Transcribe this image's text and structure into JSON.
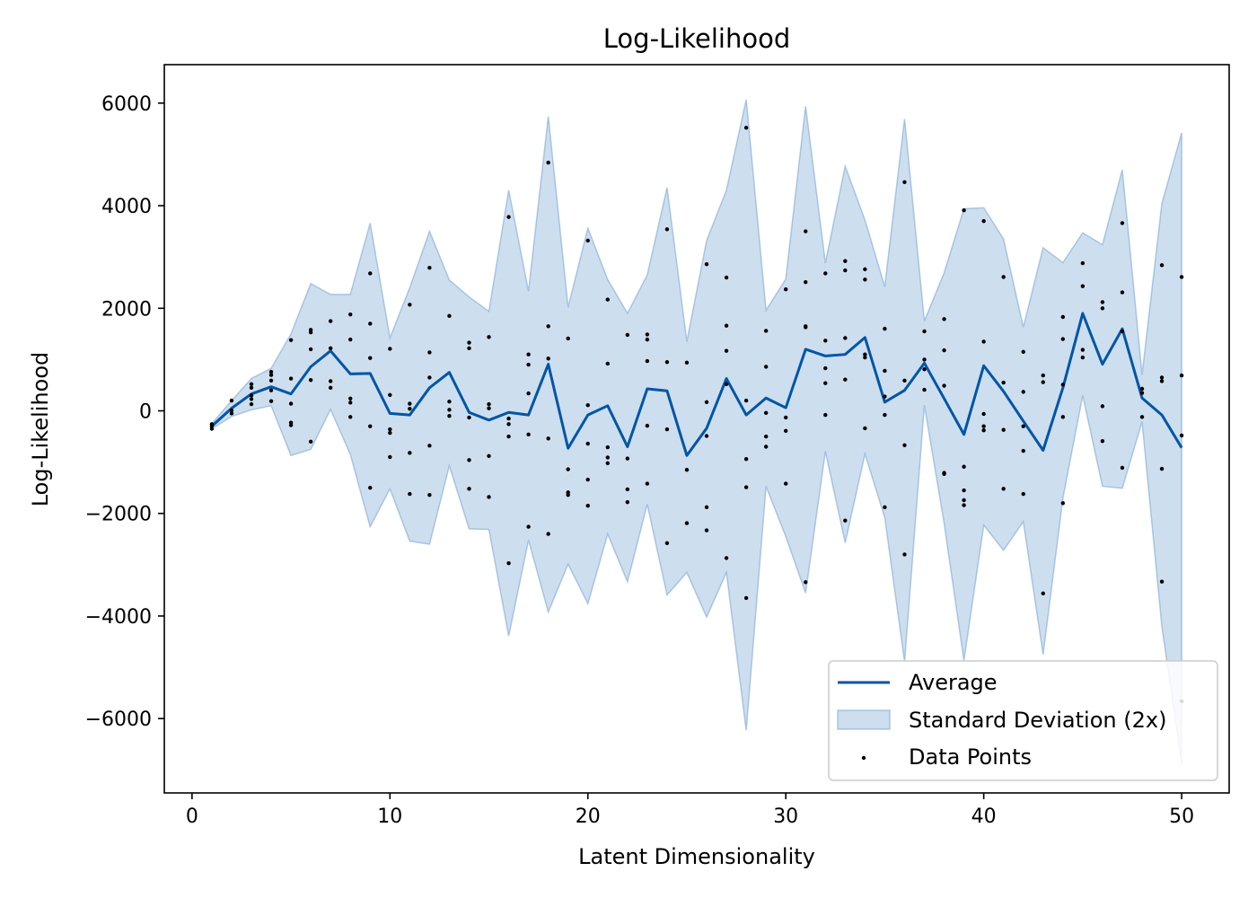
{
  "chart_data": {
    "type": "line",
    "title": "Log-Likelihood",
    "xlabel": "Latent Dimensionality",
    "ylabel": "Log-Likelihood",
    "xlim": [
      -1.4,
      52.4
    ],
    "ylim": [
      -7450,
      6750
    ],
    "xticks": [
      0,
      10,
      20,
      30,
      40,
      50
    ],
    "yticks": [
      -6000,
      -4000,
      -2000,
      0,
      2000,
      4000,
      6000
    ],
    "xtick_labels": [
      "0",
      "10",
      "20",
      "30",
      "40",
      "50"
    ],
    "ytick_labels": [
      "−6000",
      "−4000",
      "−2000",
      "0",
      "2000",
      "4000",
      "6000"
    ],
    "grid": false,
    "legend_position": "lower right",
    "legend": [
      "Average",
      "Standard Deviation (2x)",
      "Data Points"
    ],
    "colors": {
      "line": "#0055a5",
      "band": "#a8c6e4",
      "band_edge": "#7fa9d4",
      "points": "#000000"
    },
    "x": [
      1,
      2,
      3,
      4,
      5,
      6,
      7,
      8,
      9,
      10,
      11,
      12,
      13,
      14,
      15,
      16,
      17,
      18,
      19,
      20,
      21,
      22,
      23,
      24,
      25,
      26,
      27,
      28,
      29,
      30,
      31,
      32,
      33,
      34,
      35,
      36,
      37,
      38,
      39,
      40,
      41,
      42,
      43,
      44,
      45,
      46,
      47,
      48,
      49,
      50
    ],
    "average": [
      -300,
      50,
      330,
      470,
      330,
      860,
      1170,
      720,
      730,
      -50,
      -80,
      450,
      750,
      -30,
      -180,
      -30,
      -80,
      910,
      -730,
      -80,
      100,
      -700,
      430,
      390,
      -870,
      -340,
      630,
      -80,
      250,
      60,
      1200,
      1070,
      1100,
      1430,
      170,
      400,
      930,
      240,
      -460,
      880,
      380,
      -200,
      -770,
      450,
      1900,
      910,
      1600,
      250,
      -80,
      -720
    ],
    "band_upper": [
      -250,
      200,
      630,
      830,
      1500,
      2480,
      2270,
      2270,
      3660,
      1420,
      2400,
      3500,
      2550,
      2220,
      1940,
      4300,
      2330,
      5740,
      2020,
      3560,
      2560,
      1900,
      2650,
      4350,
      1350,
      3320,
      4300,
      6070,
      1960,
      2570,
      5940,
      2880,
      4770,
      3720,
      2420,
      5690,
      1750,
      2690,
      3940,
      3960,
      3350,
      1630,
      3180,
      2890,
      3470,
      3240,
      4700,
      700,
      4040,
      5420
    ],
    "band_lower": [
      -350,
      -110,
      20,
      100,
      -870,
      -750,
      30,
      -850,
      -2260,
      -1520,
      -2540,
      -2600,
      -1070,
      -2300,
      -2310,
      -4390,
      -2520,
      -3920,
      -2990,
      -3760,
      -2400,
      -3330,
      -1820,
      -3590,
      -3150,
      -4020,
      -3150,
      -6230,
      -1470,
      -2450,
      -3550,
      -790,
      -2570,
      -840,
      -2080,
      -4890,
      110,
      -2190,
      -4870,
      -2230,
      -2720,
      -2160,
      -4750,
      -1700,
      300,
      -1470,
      -1510,
      -210,
      -4200,
      -6890
    ],
    "points": [
      [
        1,
        -260
      ],
      [
        1,
        -300
      ],
      [
        1,
        -350
      ],
      [
        2,
        200
      ],
      [
        2,
        10
      ],
      [
        2,
        -50
      ],
      [
        3,
        520
      ],
      [
        3,
        450
      ],
      [
        3,
        300
      ],
      [
        3,
        230
      ],
      [
        3,
        130
      ],
      [
        4,
        760
      ],
      [
        4,
        700
      ],
      [
        4,
        590
      ],
      [
        4,
        400
      ],
      [
        4,
        190
      ],
      [
        5,
        1380
      ],
      [
        5,
        630
      ],
      [
        5,
        140
      ],
      [
        5,
        -230
      ],
      [
        5,
        -280
      ],
      [
        6,
        1580
      ],
      [
        6,
        1530
      ],
      [
        6,
        1200
      ],
      [
        6,
        600
      ],
      [
        6,
        -600
      ],
      [
        7,
        1750
      ],
      [
        7,
        1220
      ],
      [
        7,
        580
      ],
      [
        7,
        450
      ],
      [
        8,
        1880
      ],
      [
        8,
        1390
      ],
      [
        8,
        240
      ],
      [
        8,
        160
      ],
      [
        8,
        -120
      ],
      [
        9,
        2680
      ],
      [
        9,
        1700
      ],
      [
        9,
        1030
      ],
      [
        9,
        -300
      ],
      [
        9,
        -1500
      ],
      [
        10,
        1210
      ],
      [
        10,
        310
      ],
      [
        10,
        -360
      ],
      [
        10,
        -430
      ],
      [
        10,
        -900
      ],
      [
        11,
        2070
      ],
      [
        11,
        140
      ],
      [
        11,
        40
      ],
      [
        11,
        -820
      ],
      [
        11,
        -1620
      ],
      [
        12,
        2790
      ],
      [
        12,
        1140
      ],
      [
        12,
        650
      ],
      [
        12,
        -680
      ],
      [
        12,
        -1640
      ],
      [
        13,
        1850
      ],
      [
        13,
        180
      ],
      [
        13,
        20
      ],
      [
        13,
        -100
      ],
      [
        14,
        1330
      ],
      [
        14,
        1220
      ],
      [
        14,
        -130
      ],
      [
        14,
        -960
      ],
      [
        14,
        -1520
      ],
      [
        15,
        1440
      ],
      [
        15,
        130
      ],
      [
        15,
        50
      ],
      [
        15,
        -880
      ],
      [
        15,
        -1680
      ],
      [
        16,
        3780
      ],
      [
        16,
        -150
      ],
      [
        16,
        -260
      ],
      [
        16,
        -500
      ],
      [
        16,
        -2970
      ],
      [
        17,
        1100
      ],
      [
        17,
        900
      ],
      [
        17,
        340
      ],
      [
        17,
        -460
      ],
      [
        17,
        -2260
      ],
      [
        18,
        4840
      ],
      [
        18,
        1650
      ],
      [
        18,
        1020
      ],
      [
        18,
        -540
      ],
      [
        18,
        -2400
      ],
      [
        19,
        1410
      ],
      [
        19,
        -1140
      ],
      [
        19,
        -1590
      ],
      [
        19,
        -1640
      ],
      [
        20,
        3320
      ],
      [
        20,
        110
      ],
      [
        20,
        -640
      ],
      [
        20,
        -1340
      ],
      [
        20,
        -1850
      ],
      [
        21,
        2170
      ],
      [
        21,
        920
      ],
      [
        21,
        -710
      ],
      [
        21,
        -910
      ],
      [
        21,
        -1020
      ],
      [
        22,
        1480
      ],
      [
        22,
        -930
      ],
      [
        22,
        -1530
      ],
      [
        22,
        -1780
      ],
      [
        23,
        1490
      ],
      [
        23,
        1390
      ],
      [
        23,
        970
      ],
      [
        23,
        -290
      ],
      [
        23,
        -1420
      ],
      [
        24,
        3540
      ],
      [
        24,
        950
      ],
      [
        24,
        -360
      ],
      [
        24,
        -2580
      ],
      [
        25,
        940
      ],
      [
        25,
        -1150
      ],
      [
        25,
        -2190
      ],
      [
        26,
        2860
      ],
      [
        26,
        170
      ],
      [
        26,
        -490
      ],
      [
        26,
        -1880
      ],
      [
        26,
        -2330
      ],
      [
        27,
        2600
      ],
      [
        27,
        1660
      ],
      [
        27,
        1170
      ],
      [
        27,
        520
      ],
      [
        27,
        -2870
      ],
      [
        28,
        5520
      ],
      [
        28,
        200
      ],
      [
        28,
        -940
      ],
      [
        28,
        -1490
      ],
      [
        28,
        -3650
      ],
      [
        29,
        1560
      ],
      [
        29,
        860
      ],
      [
        29,
        -40
      ],
      [
        29,
        -500
      ],
      [
        29,
        -700
      ],
      [
        30,
        2370
      ],
      [
        30,
        -130
      ],
      [
        30,
        -390
      ],
      [
        30,
        -1420
      ],
      [
        31,
        3500
      ],
      [
        31,
        2510
      ],
      [
        31,
        1650
      ],
      [
        31,
        1630
      ],
      [
        31,
        -3340
      ],
      [
        32,
        2680
      ],
      [
        32,
        1370
      ],
      [
        32,
        830
      ],
      [
        32,
        540
      ],
      [
        32,
        -80
      ],
      [
        33,
        2920
      ],
      [
        33,
        2740
      ],
      [
        33,
        1420
      ],
      [
        33,
        610
      ],
      [
        33,
        -2140
      ],
      [
        34,
        2760
      ],
      [
        34,
        2560
      ],
      [
        34,
        1100
      ],
      [
        34,
        1040
      ],
      [
        34,
        -340
      ],
      [
        35,
        1600
      ],
      [
        35,
        780
      ],
      [
        35,
        280
      ],
      [
        35,
        -80
      ],
      [
        35,
        -1880
      ],
      [
        36,
        4460
      ],
      [
        36,
        590
      ],
      [
        36,
        -670
      ],
      [
        36,
        -2800
      ],
      [
        37,
        1550
      ],
      [
        37,
        1000
      ],
      [
        37,
        810
      ],
      [
        37,
        410
      ],
      [
        38,
        1790
      ],
      [
        38,
        1180
      ],
      [
        38,
        490
      ],
      [
        38,
        -1210
      ],
      [
        38,
        -1230
      ],
      [
        39,
        3910
      ],
      [
        39,
        -1090
      ],
      [
        39,
        -1550
      ],
      [
        39,
        -1740
      ],
      [
        39,
        -1840
      ],
      [
        40,
        3700
      ],
      [
        40,
        1350
      ],
      [
        40,
        -60
      ],
      [
        40,
        -300
      ],
      [
        40,
        -380
      ],
      [
        41,
        2610
      ],
      [
        41,
        550
      ],
      [
        41,
        -370
      ],
      [
        41,
        -1520
      ],
      [
        42,
        1150
      ],
      [
        42,
        370
      ],
      [
        42,
        -300
      ],
      [
        42,
        -780
      ],
      [
        42,
        -1620
      ],
      [
        43,
        690
      ],
      [
        43,
        560
      ],
      [
        43,
        -3560
      ],
      [
        44,
        1830
      ],
      [
        44,
        1400
      ],
      [
        44,
        510
      ],
      [
        44,
        -120
      ],
      [
        44,
        -1800
      ],
      [
        45,
        2880
      ],
      [
        45,
        2430
      ],
      [
        45,
        1190
      ],
      [
        45,
        1040
      ],
      [
        46,
        2120
      ],
      [
        46,
        2000
      ],
      [
        46,
        90
      ],
      [
        46,
        -590
      ],
      [
        47,
        3660
      ],
      [
        47,
        2310
      ],
      [
        47,
        1550
      ],
      [
        47,
        -1110
      ],
      [
        48,
        430
      ],
      [
        48,
        350
      ],
      [
        48,
        -120
      ],
      [
        49,
        2840
      ],
      [
        49,
        650
      ],
      [
        49,
        580
      ],
      [
        49,
        -1130
      ],
      [
        49,
        -3330
      ],
      [
        50,
        2610
      ],
      [
        50,
        690
      ],
      [
        50,
        -480
      ],
      [
        50,
        -5660
      ]
    ]
  }
}
